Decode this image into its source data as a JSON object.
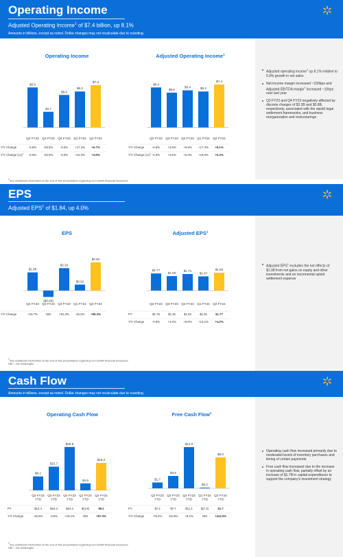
{
  "colors": {
    "blue": "#0a6fd8",
    "yellow": "#ffc220",
    "bar_blue": "#0a6fd8",
    "panel_bg": "#f2f2f2",
    "spark": "#ffc220"
  },
  "operating_income": {
    "title": "Operating Income",
    "subtitle_pre": "Adjusted Operating Income",
    "subtitle_sup": "1",
    "subtitle_post": " of $7.4 billion, up 8.1%",
    "note": "Amounts in billions, except as noted.  Dollar changes may not recalculate due to rounding.",
    "bullets": [
      {
        "pre": "Adjusted operating income",
        "sup": "1",
        "post": " up 8.1% relative to 5.9% growth in net sales"
      },
      {
        "pre": "Net income margin increased ~150bps and Adjusted EBITDA margin",
        "sup": "1",
        "post": " increased ~10bps over last year"
      },
      {
        "pre": "Q3 FY23 and Q4 FY23 negatively affected by discrete charges of $3.3B and $0.8B, respectively, associated with the opioid legal settlement frameworks, and business reorganization and restructurings",
        "sup": "",
        "post": ""
      }
    ],
    "footnote": "See additional information at the end of this presentation regarding non-GAAP financial measures.",
    "footnote_sup": "1"
  },
  "eps": {
    "title": "EPS",
    "subtitle_pre": "Adjusted EPS",
    "subtitle_sup": "1",
    "subtitle_post": " of $1.84, up 4.0%",
    "bullets": [
      {
        "pre": "Adjusted EPS",
        "sup": "1",
        "post": " excludes the net effects of $1.08 from net gains on equity and other investments and an incremental opioid settlement expense"
      }
    ],
    "footnote": "See additional information at the end of this presentation regarding non-GAAP financial measures.",
    "footnote_sup": "1",
    "footnote2": "NM = not meaningful"
  },
  "cash_flow": {
    "title": "Cash Flow",
    "note": "Amounts in billions, except as noted.  Dollar changes may not recalculate due to rounding.",
    "bullets": [
      {
        "pre": "Operating cash flow increased primarily due to moderated levels of inventory purchases and timing of certain payments",
        "sup": "",
        "post": ""
      },
      {
        "pre": "Free cash flow increased due to the increase in operating cash flow, partially offset by an increase of $1.7B in capital expenditures to support the company's investment strategy",
        "sup": "",
        "post": ""
      }
    ],
    "footnote": "See additional information at the end of this presentation regarding non-GAAP financial measures.",
    "footnote_sup": "1",
    "footnote2": "NM = not meaningful"
  },
  "chart_data": [
    {
      "type": "bar",
      "title": "Operating Income",
      "title_sup": "",
      "categories": [
        "Q2 FY23",
        "Q3 FY23",
        "Q4 FY23",
        "Q1 FY24",
        "Q2 FY24"
      ],
      "values": [
        6.9,
        2.7,
        5.6,
        6.2,
        7.3
      ],
      "labels": [
        "$6.9",
        "$2.7",
        "$5.6",
        "$6.2",
        "$7.3"
      ],
      "highlight_last": true,
      "ylim": [
        -1,
        8
      ],
      "rows": [
        {
          "label": "Y/Y Change",
          "values": [
            "-6.8%",
            "-53.5%",
            "-5.5%",
            "+17.3%",
            "+6.7%"
          ]
        },
        {
          "label": "Y/Y Change (cc)",
          "label_sup": "1",
          "values": [
            "-6.0%",
            "-52.8%",
            "-6.5%",
            "+16.0%",
            "+4.9%"
          ]
        }
      ]
    },
    {
      "type": "bar",
      "title": "Adjusted Operating Income",
      "title_sup": "1",
      "categories": [
        "Q2 FY23",
        "Q3 FY23",
        "Q4 FY23",
        "Q1 FY24",
        "Q2 FY24"
      ],
      "values": [
        6.9,
        6.0,
        6.4,
        6.2,
        7.4
      ],
      "labels": [
        "$6.9",
        "$6.0",
        "$6.4",
        "$6.2",
        "$7.4"
      ],
      "highlight_last": true,
      "ylim": [
        -1,
        8
      ],
      "rows": [
        {
          "label": "Y/Y Change",
          "values": [
            "-6.8%",
            "+3.9%",
            "+6.9%",
            "+17.3%",
            "+8.1%"
          ]
        },
        {
          "label": "Y/Y Change (cc)",
          "label_sup": "1",
          "values": [
            "-6.0%",
            "+4.6%",
            "+6.3%",
            "+16.0%",
            "+6.3%"
          ]
        }
      ]
    },
    {
      "type": "bar",
      "title": "EPS",
      "title_sup": "",
      "categories": [
        "Q2 FY23",
        "Q3 FY23",
        "Q4 FY23",
        "Q1 FY24",
        "Q2 FY24"
      ],
      "values": [
        1.88,
        -0.66,
        2.32,
        0.62,
        2.92
      ],
      "labels": [
        "$1.88",
        "($0.66)",
        "$2.32",
        "$0.62",
        "$2.92"
      ],
      "highlight_last": true,
      "ylim": [
        -1.2,
        3.2
      ],
      "rows": [
        {
          "label": "Y/Y Change",
          "values": [
            "+23.7%",
            "NM",
            "+81.3%",
            "-16.2%",
            "+55.3%"
          ]
        }
      ]
    },
    {
      "type": "bar",
      "title": "Adjusted EPS",
      "title_sup": "1",
      "categories": [
        "Q2 FY23",
        "Q3 FY23",
        "Q4 FY23",
        "Q1 FY24",
        "Q2 FY24"
      ],
      "values": [
        1.77,
        1.5,
        1.71,
        1.47,
        1.84
      ],
      "labels": [
        "$1.77",
        "$1.50",
        "$1.71",
        "$1.47",
        "$1.84"
      ],
      "highlight_last": true,
      "ylim": [
        -1.2,
        3.2
      ],
      "rows": [
        {
          "label": "PY",
          "values": [
            "$1.78",
            "$1.45",
            "$1.53",
            "$1.30",
            "$1.77"
          ]
        },
        {
          "label": "Y/Y Change",
          "values": [
            "-0.6%",
            "+3.4%",
            "+9.8%",
            "+13.1%",
            "+4.0%"
          ]
        }
      ]
    },
    {
      "type": "bar",
      "title": "Operating Cash Flow",
      "title_sup": "",
      "categories": [
        "Q2 FY23 YTD",
        "Q3 FY23 YTD",
        "Q4 FY23 YTD",
        "Q1 FY24 YTD",
        "Q2 FY24 YTD"
      ],
      "values": [
        9.2,
        15.7,
        28.8,
        4.6,
        18.2
      ],
      "labels": [
        "$9.2",
        "$15.7",
        "$28.8",
        "$4.6",
        "$18.2"
      ],
      "highlight_last": true,
      "ylim": [
        -1,
        31
      ],
      "rows": [
        {
          "label": "PY",
          "values": [
            "$12.4",
            "$16.3",
            "$24.2",
            "$(3.8)",
            "$9.2"
          ]
        },
        {
          "label": "Y/Y Change",
          "values": [
            "-25.6%",
            "-3.6%",
            "+19.1%",
            "NM",
            "+97.0%"
          ]
        }
      ]
    },
    {
      "type": "bar",
      "title": "Free Cash Flow",
      "title_sup": "1",
      "categories": [
        "Q2 FY23 YTD",
        "Q3 FY23 YTD",
        "Q4 FY23 YTD",
        "Q1 FY24 YTD",
        "Q2 FY24 YTD"
      ],
      "values": [
        1.7,
        3.6,
        12.0,
        0.2,
        9.0
      ],
      "labels": [
        "$1.7",
        "$3.6",
        "$12.0",
        "$0.2",
        "$9.0"
      ],
      "highlight_last": true,
      "ylim": [
        -1,
        13
      ],
      "rows": [
        {
          "label": "PY",
          "values": [
            "$7.4",
            "$7.7",
            "$11.1",
            "$(7.3)",
            "$1.7"
          ]
        },
        {
          "label": "Y/Y Change",
          "values": [
            "-76.4%",
            "-52.8%",
            "+8.2%",
            "NM",
            "+414.0%"
          ]
        }
      ]
    }
  ]
}
